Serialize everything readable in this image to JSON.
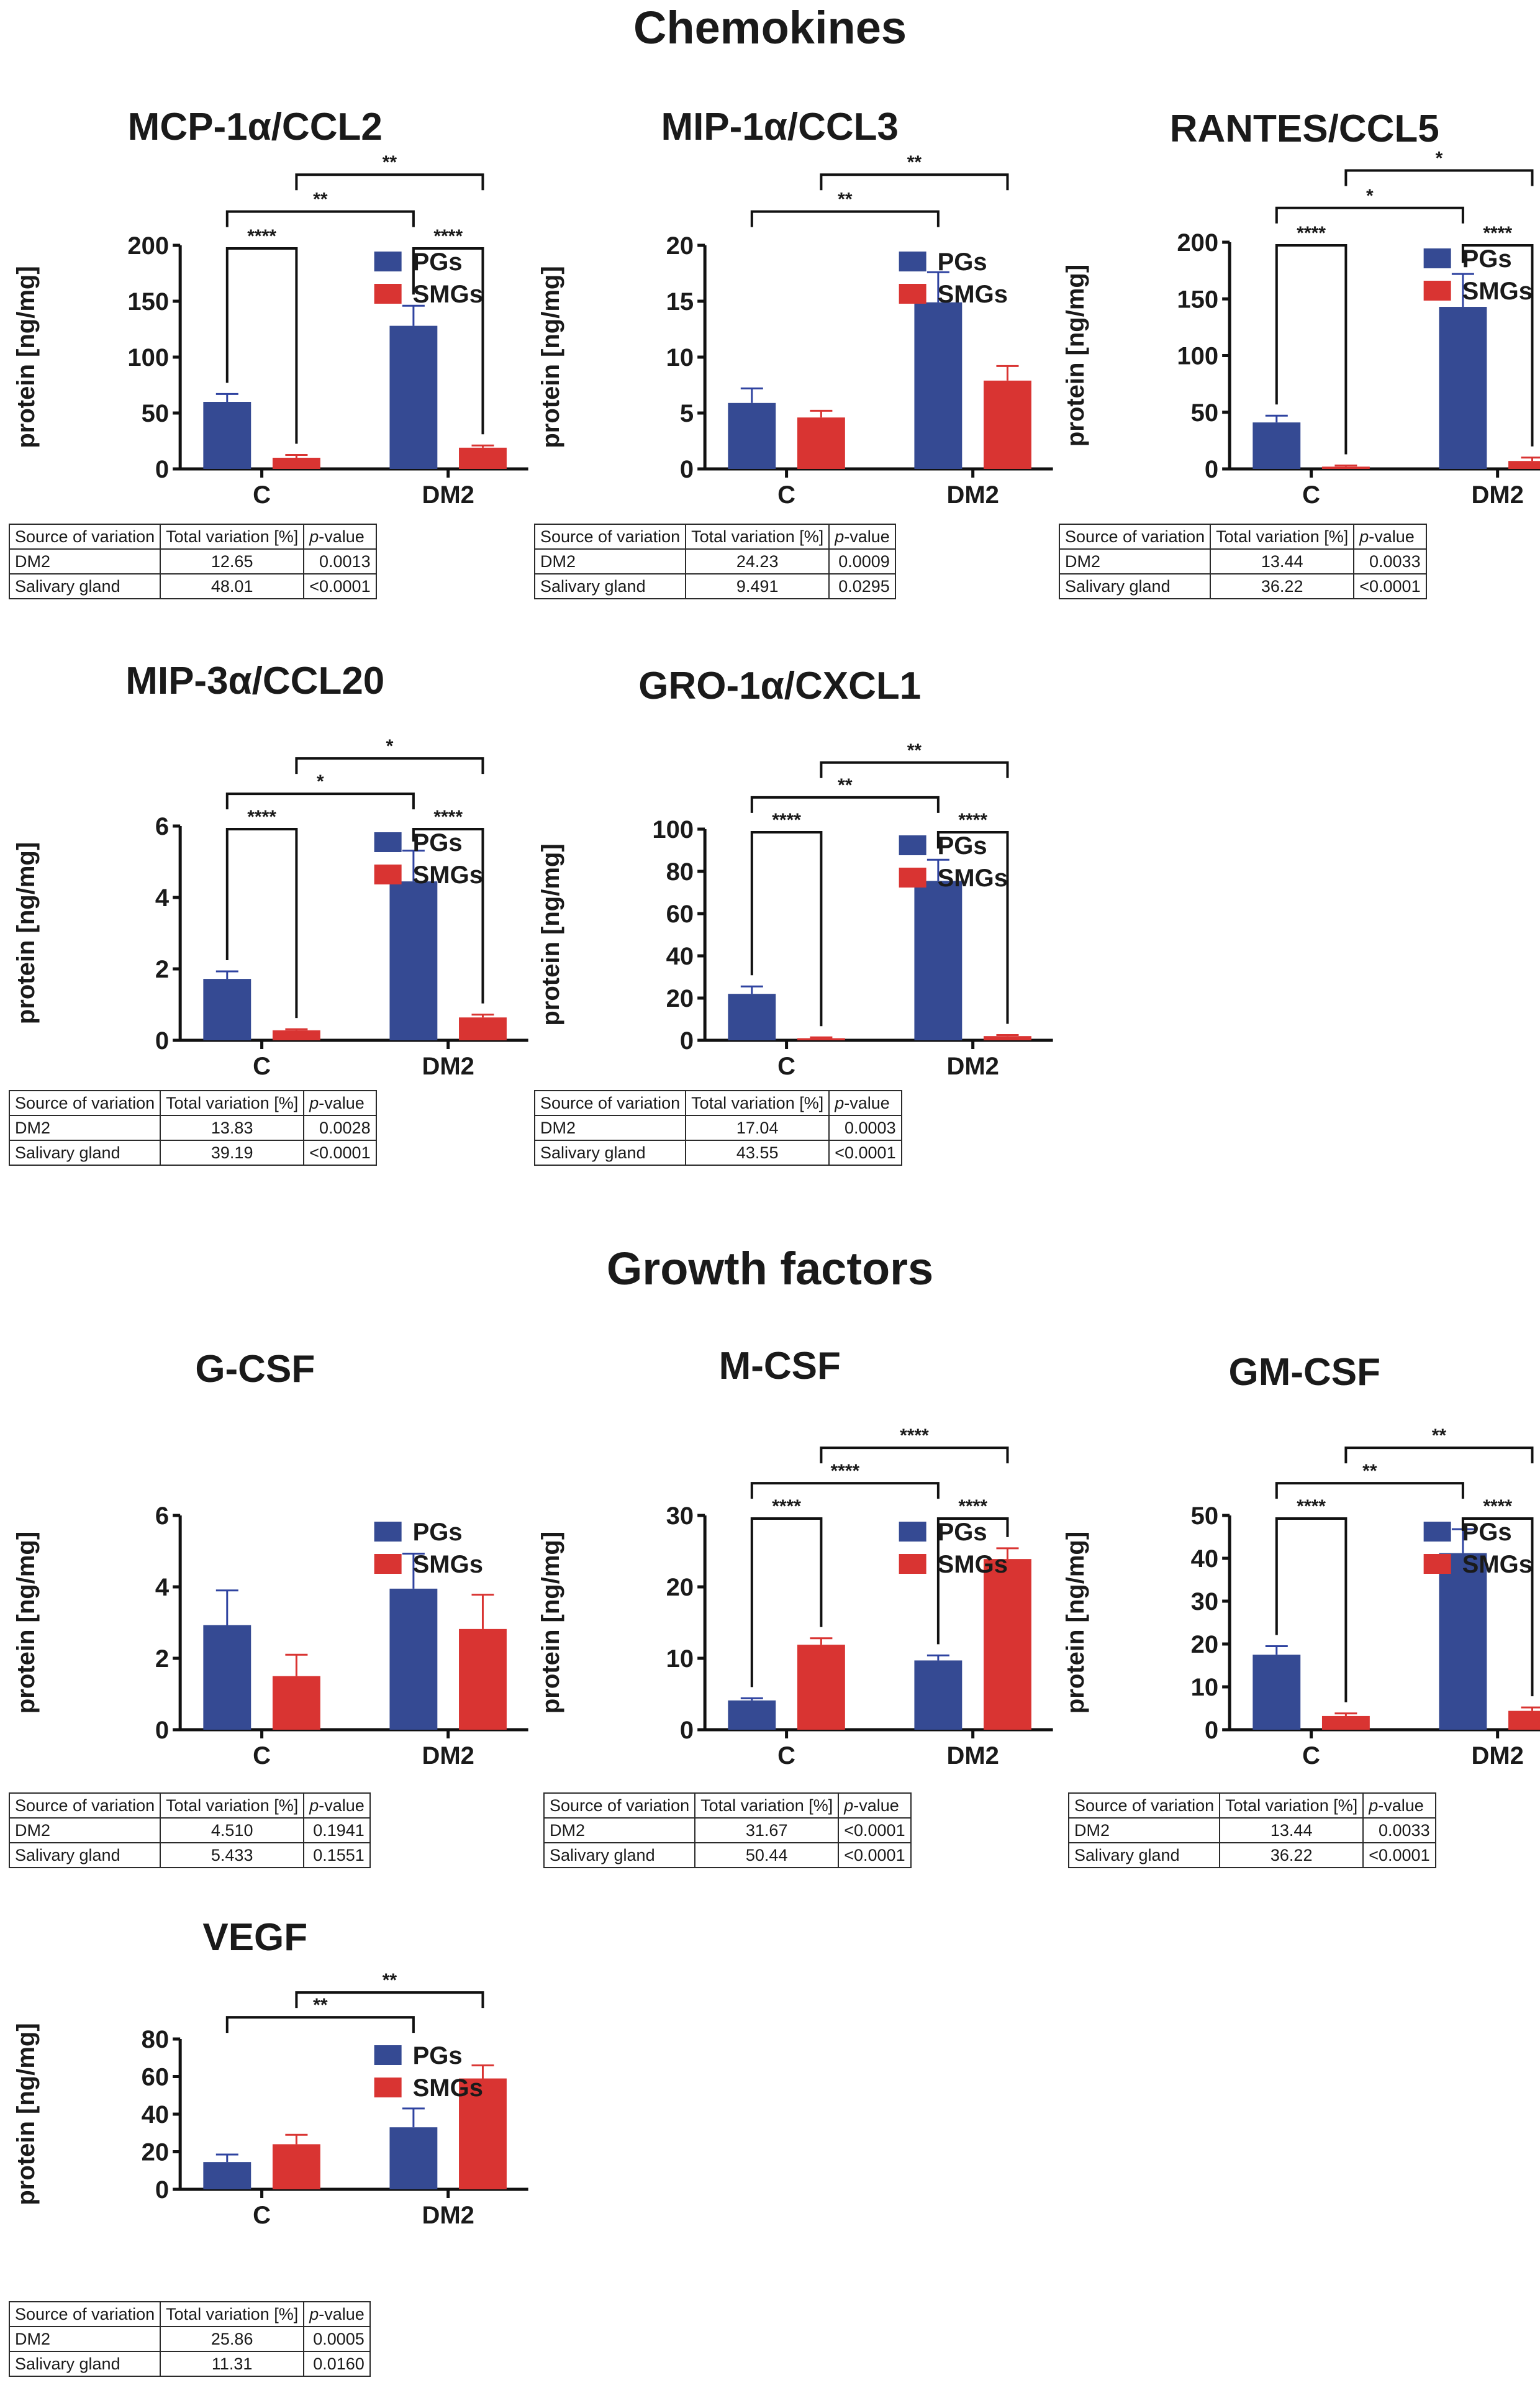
{
  "sections": [
    {
      "id": "chemokines",
      "title": "Chemokines"
    },
    {
      "id": "growth",
      "title": "Growth factors"
    }
  ],
  "legend": [
    {
      "name": "PGs",
      "color": "#354a93"
    },
    {
      "name": "SMGs",
      "color": "#d93432"
    }
  ],
  "table_headers": {
    "source": "Source of variation",
    "total": "Total variation [%]",
    "p_prefix": "p",
    "p_suffix": "-value"
  },
  "chart_data": [
    {
      "type": "bar",
      "title": "MCP-1α/CCL2",
      "ylabel": "protein [ng/mg]",
      "xlabel": "",
      "categories": [
        "C",
        "DM2"
      ],
      "ylim": [
        0,
        200
      ],
      "yticks": [
        0,
        50,
        100,
        150,
        200
      ],
      "legend_position": "top-right",
      "series": [
        {
          "name": "PGs",
          "values": [
            60,
            128
          ],
          "errors": [
            7,
            18
          ]
        },
        {
          "name": "SMGs",
          "values": [
            10,
            19
          ],
          "errors": [
            2.5,
            2
          ]
        }
      ],
      "significance": [
        {
          "from": [
            0,
            0
          ],
          "to": [
            0,
            1
          ],
          "label": "****",
          "level": 1
        },
        {
          "from": [
            1,
            0
          ],
          "to": [
            1,
            1
          ],
          "label": "****",
          "level": 1
        },
        {
          "from": [
            0,
            0
          ],
          "to": [
            1,
            0
          ],
          "label": "**",
          "level": 2
        },
        {
          "from": [
            0,
            1
          ],
          "to": [
            1,
            1
          ],
          "label": "**",
          "level": 3
        }
      ],
      "table": [
        {
          "source": "DM2",
          "total": "12.65",
          "p": "0.0013"
        },
        {
          "source": "Salivary gland",
          "total": "48.01",
          "p": "<0.0001"
        }
      ]
    },
    {
      "type": "bar",
      "title": "MIP-1α/CCL3",
      "ylabel": "protein [ng/mg]",
      "xlabel": "",
      "categories": [
        "C",
        "DM2"
      ],
      "ylim": [
        0,
        20
      ],
      "yticks": [
        0,
        5,
        10,
        15,
        20
      ],
      "legend_position": "top-right",
      "series": [
        {
          "name": "PGs",
          "values": [
            5.9,
            14.9
          ],
          "errors": [
            1.3,
            2.7
          ]
        },
        {
          "name": "SMGs",
          "values": [
            4.6,
            7.9
          ],
          "errors": [
            0.6,
            1.3
          ]
        }
      ],
      "significance": [
        {
          "from": [
            0,
            0
          ],
          "to": [
            1,
            0
          ],
          "label": "**",
          "level": 2
        },
        {
          "from": [
            0,
            1
          ],
          "to": [
            1,
            1
          ],
          "label": "**",
          "level": 3
        }
      ],
      "table": [
        {
          "source": "DM2",
          "total": "24.23",
          "p": "0.0009"
        },
        {
          "source": "Salivary gland",
          "total": "9.491",
          "p": "0.0295"
        }
      ]
    },
    {
      "type": "bar",
      "title": "RANTES/CCL5",
      "ylabel": "protein [ng/mg]",
      "xlabel": "",
      "categories": [
        "C",
        "DM2"
      ],
      "ylim": [
        0,
        200
      ],
      "yticks": [
        0,
        50,
        100,
        150,
        200
      ],
      "legend_position": "top-right",
      "series": [
        {
          "name": "PGs",
          "values": [
            41,
            143
          ],
          "errors": [
            6,
            29
          ]
        },
        {
          "name": "SMGs",
          "values": [
            2,
            7
          ],
          "errors": [
            1,
            3
          ]
        }
      ],
      "significance": [
        {
          "from": [
            0,
            0
          ],
          "to": [
            0,
            1
          ],
          "label": "****",
          "level": 1
        },
        {
          "from": [
            1,
            0
          ],
          "to": [
            1,
            1
          ],
          "label": "****",
          "level": 1
        },
        {
          "from": [
            0,
            0
          ],
          "to": [
            1,
            0
          ],
          "label": "*",
          "level": 2
        },
        {
          "from": [
            0,
            1
          ],
          "to": [
            1,
            1
          ],
          "label": "*",
          "level": 3
        }
      ],
      "table": [
        {
          "source": "DM2",
          "total": "13.44",
          "p": "0.0033"
        },
        {
          "source": "Salivary gland",
          "total": "36.22",
          "p": "<0.0001"
        }
      ]
    },
    {
      "type": "bar",
      "title": "MIP-3α/CCL20",
      "ylabel": "protein [ng/mg]",
      "xlabel": "",
      "categories": [
        "C",
        "DM2"
      ],
      "ylim": [
        0,
        6
      ],
      "yticks": [
        0,
        2,
        4,
        6
      ],
      "legend_position": "top-right",
      "series": [
        {
          "name": "PGs",
          "values": [
            1.72,
            4.45
          ],
          "errors": [
            0.21,
            0.86
          ]
        },
        {
          "name": "SMGs",
          "values": [
            0.28,
            0.64
          ],
          "errors": [
            0.03,
            0.08
          ]
        }
      ],
      "significance": [
        {
          "from": [
            0,
            0
          ],
          "to": [
            0,
            1
          ],
          "label": "****",
          "level": 1
        },
        {
          "from": [
            1,
            0
          ],
          "to": [
            1,
            1
          ],
          "label": "****",
          "level": 1
        },
        {
          "from": [
            0,
            0
          ],
          "to": [
            1,
            0
          ],
          "label": "*",
          "level": 2
        },
        {
          "from": [
            0,
            1
          ],
          "to": [
            1,
            1
          ],
          "label": "*",
          "level": 3
        }
      ],
      "table": [
        {
          "source": "DM2",
          "total": "13.83",
          "p": "0.0028"
        },
        {
          "source": "Salivary gland",
          "total": "39.19",
          "p": "<0.0001"
        }
      ]
    },
    {
      "type": "bar",
      "title": "GRO-1α/CXCL1",
      "ylabel": "protein [ng/mg]",
      "xlabel": "",
      "categories": [
        "C",
        "DM2"
      ],
      "ylim": [
        0,
        100
      ],
      "yticks": [
        0,
        20,
        40,
        60,
        80,
        100
      ],
      "legend_position": "top-right",
      "series": [
        {
          "name": "PGs",
          "values": [
            22,
            75.5
          ],
          "errors": [
            3.5,
            10
          ]
        },
        {
          "name": "SMGs",
          "values": [
            1,
            2
          ],
          "errors": [
            0.4,
            0.5
          ]
        }
      ],
      "significance": [
        {
          "from": [
            0,
            0
          ],
          "to": [
            0,
            1
          ],
          "label": "****",
          "level": 1
        },
        {
          "from": [
            1,
            0
          ],
          "to": [
            1,
            1
          ],
          "label": "****",
          "level": 1
        },
        {
          "from": [
            0,
            0
          ],
          "to": [
            1,
            0
          ],
          "label": "**",
          "level": 2
        },
        {
          "from": [
            0,
            1
          ],
          "to": [
            1,
            1
          ],
          "label": "**",
          "level": 3
        }
      ],
      "table": [
        {
          "source": "DM2",
          "total": "17.04",
          "p": "0.0003"
        },
        {
          "source": "Salivary gland",
          "total": "43.55",
          "p": "<0.0001"
        }
      ]
    },
    {
      "type": "bar",
      "title": "G-CSF",
      "ylabel": "protein [ng/mg]",
      "xlabel": "",
      "categories": [
        "C",
        "DM2"
      ],
      "ylim": [
        0,
        6
      ],
      "yticks": [
        0,
        2,
        4,
        6
      ],
      "legend_position": "top-right",
      "series": [
        {
          "name": "PGs",
          "values": [
            2.93,
            3.95
          ],
          "errors": [
            0.97,
            0.98
          ]
        },
        {
          "name": "SMGs",
          "values": [
            1.5,
            2.82
          ],
          "errors": [
            0.6,
            0.96
          ]
        }
      ],
      "significance": [],
      "table": [
        {
          "source": "DM2",
          "total": "4.510",
          "p": "0.1941"
        },
        {
          "source": "Salivary gland",
          "total": "5.433",
          "p": "0.1551"
        }
      ]
    },
    {
      "type": "bar",
      "title": "M-CSF",
      "ylabel": "protein [ng/mg]",
      "xlabel": "",
      "categories": [
        "C",
        "DM2"
      ],
      "ylim": [
        0,
        30
      ],
      "yticks": [
        0,
        10,
        20,
        30
      ],
      "legend_position": "top-right",
      "series": [
        {
          "name": "PGs",
          "values": [
            4.1,
            9.7
          ],
          "errors": [
            0.3,
            0.7
          ]
        },
        {
          "name": "SMGs",
          "values": [
            11.9,
            23.9
          ],
          "errors": [
            0.9,
            1.5
          ]
        }
      ],
      "significance": [
        {
          "from": [
            0,
            0
          ],
          "to": [
            0,
            1
          ],
          "label": "****",
          "level": 1
        },
        {
          "from": [
            1,
            0
          ],
          "to": [
            1,
            1
          ],
          "label": "****",
          "level": 1
        },
        {
          "from": [
            0,
            0
          ],
          "to": [
            1,
            0
          ],
          "label": "****",
          "level": 2
        },
        {
          "from": [
            0,
            1
          ],
          "to": [
            1,
            1
          ],
          "label": "****",
          "level": 3
        }
      ],
      "table": [
        {
          "source": "DM2",
          "total": "31.67",
          "p": "<0.0001"
        },
        {
          "source": "Salivary gland",
          "total": "50.44",
          "p": "<0.0001"
        }
      ]
    },
    {
      "type": "bar",
      "title": "GM-CSF",
      "ylabel": "protein [ng/mg]",
      "xlabel": "",
      "categories": [
        "C",
        "DM2"
      ],
      "ylim": [
        0,
        50
      ],
      "yticks": [
        0,
        10,
        20,
        30,
        40,
        50
      ],
      "legend_position": "top-right",
      "series": [
        {
          "name": "PGs",
          "values": [
            17.5,
            41.2
          ],
          "errors": [
            2,
            5.6
          ]
        },
        {
          "name": "SMGs",
          "values": [
            3.2,
            4.4
          ],
          "errors": [
            0.6,
            0.8
          ]
        }
      ],
      "significance": [
        {
          "from": [
            0,
            0
          ],
          "to": [
            0,
            1
          ],
          "label": "****",
          "level": 1
        },
        {
          "from": [
            1,
            0
          ],
          "to": [
            1,
            1
          ],
          "label": "****",
          "level": 1
        },
        {
          "from": [
            0,
            0
          ],
          "to": [
            1,
            0
          ],
          "label": "**",
          "level": 2
        },
        {
          "from": [
            0,
            1
          ],
          "to": [
            1,
            1
          ],
          "label": "**",
          "level": 3
        }
      ],
      "table": [
        {
          "source": "DM2",
          "total": "13.44",
          "p": "0.0033"
        },
        {
          "source": "Salivary gland",
          "total": "36.22",
          "p": "<0.0001"
        }
      ]
    },
    {
      "type": "bar",
      "title": "VEGF",
      "ylabel": "protein [ng/mg]",
      "xlabel": "",
      "categories": [
        "C",
        "DM2"
      ],
      "ylim": [
        0,
        80
      ],
      "yticks": [
        0,
        20,
        40,
        60,
        80
      ],
      "legend_position": "top-right",
      "series": [
        {
          "name": "PGs",
          "values": [
            14.5,
            33
          ],
          "errors": [
            4,
            10
          ]
        },
        {
          "name": "SMGs",
          "values": [
            24,
            59
          ],
          "errors": [
            5,
            7
          ]
        }
      ],
      "significance": [
        {
          "from": [
            0,
            0
          ],
          "to": [
            1,
            0
          ],
          "label": "**",
          "level": 2
        },
        {
          "from": [
            0,
            1
          ],
          "to": [
            1,
            1
          ],
          "label": "**",
          "level": 3
        }
      ],
      "table": [
        {
          "source": "DM2",
          "total": "25.86",
          "p": "0.0005"
        },
        {
          "source": "Salivary gland",
          "total": "11.31",
          "p": "0.0160"
        }
      ]
    }
  ]
}
